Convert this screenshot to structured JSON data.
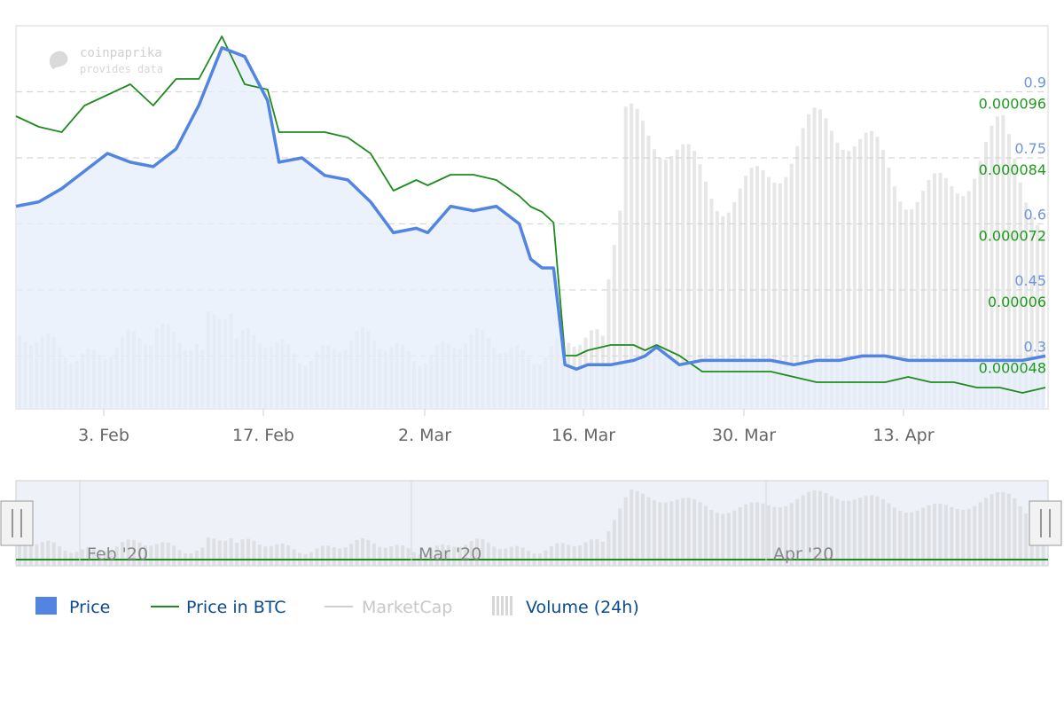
{
  "watermark": {
    "title": "coinpaprika",
    "subtitle": "provides data"
  },
  "colors": {
    "price": "#5285e1",
    "price_fill": "#e6edfb",
    "price_btc": "#1f8b1f",
    "marketcap": "#d7d7d7",
    "volume": "#d3d3d3",
    "grid": "#d6d6d6",
    "left_axis_text": "#6f96d8",
    "right_axis_text": "#1f9a1f",
    "legend_text": "#0b4a8f",
    "legend_hidden": "#c8c8c8",
    "navigator_bg": "#e9ecf6",
    "navigator_line": "#1f8b1f"
  },
  "navigator": {
    "labels": [
      "Feb '20",
      "Mar '20",
      "Apr '20"
    ]
  },
  "legend": [
    {
      "label": "Price",
      "symbol": "square"
    },
    {
      "label": "Price in BTC",
      "symbol": "line"
    },
    {
      "label": "MarketCap",
      "symbol": "line-hidden"
    },
    {
      "label": "Volume (24h)",
      "symbol": "bars"
    }
  ],
  "chart_data": {
    "type": "line",
    "title": "",
    "x_tick_labels": [
      "3. Feb",
      "17. Feb",
      "2. Mar",
      "16. Mar",
      "30. Mar",
      "13. Apr"
    ],
    "left_axis": {
      "series": "Price",
      "ticks": [
        "0.9",
        "0.75",
        "0.6",
        "0.45",
        "0.3"
      ],
      "range": [
        0.18,
        1.05
      ]
    },
    "right_axis": {
      "series": "Price in BTC",
      "ticks": [
        "0.000096",
        "0.000084",
        "0.000072",
        "0.00006",
        "0.000048"
      ],
      "range": [
        3.6e-05,
        0.000108
      ]
    },
    "grid": true,
    "legend_position": "bottom-left",
    "x_start": "2020-01-26",
    "series": [
      {
        "name": "Price",
        "axis": "left",
        "points": [
          [
            "2020-01-26",
            0.64
          ],
          [
            "2020-01-28",
            0.65
          ],
          [
            "2020-01-30",
            0.68
          ],
          [
            "2020-02-01",
            0.72
          ],
          [
            "2020-02-03",
            0.76
          ],
          [
            "2020-02-05",
            0.74
          ],
          [
            "2020-02-07",
            0.73
          ],
          [
            "2020-02-09",
            0.77
          ],
          [
            "2020-02-11",
            0.87
          ],
          [
            "2020-02-13",
            1.0
          ],
          [
            "2020-02-15",
            0.98
          ],
          [
            "2020-02-17",
            0.88
          ],
          [
            "2020-02-18",
            0.74
          ],
          [
            "2020-02-20",
            0.75
          ],
          [
            "2020-02-22",
            0.71
          ],
          [
            "2020-02-24",
            0.7
          ],
          [
            "2020-02-26",
            0.65
          ],
          [
            "2020-02-28",
            0.58
          ],
          [
            "2020-03-01",
            0.59
          ],
          [
            "2020-03-02",
            0.58
          ],
          [
            "2020-03-04",
            0.64
          ],
          [
            "2020-03-06",
            0.63
          ],
          [
            "2020-03-08",
            0.64
          ],
          [
            "2020-03-10",
            0.6
          ],
          [
            "2020-03-11",
            0.52
          ],
          [
            "2020-03-12",
            0.5
          ],
          [
            "2020-03-13",
            0.5
          ],
          [
            "2020-03-14",
            0.28
          ],
          [
            "2020-03-15",
            0.27
          ],
          [
            "2020-03-16",
            0.28
          ],
          [
            "2020-03-18",
            0.28
          ],
          [
            "2020-03-20",
            0.29
          ],
          [
            "2020-03-21",
            0.3
          ],
          [
            "2020-03-22",
            0.32
          ],
          [
            "2020-03-24",
            0.28
          ],
          [
            "2020-03-26",
            0.29
          ],
          [
            "2020-03-28",
            0.29
          ],
          [
            "2020-03-30",
            0.29
          ],
          [
            "2020-04-01",
            0.29
          ],
          [
            "2020-04-03",
            0.28
          ],
          [
            "2020-04-05",
            0.29
          ],
          [
            "2020-04-07",
            0.29
          ],
          [
            "2020-04-09",
            0.3
          ],
          [
            "2020-04-11",
            0.3
          ],
          [
            "2020-04-13",
            0.29
          ],
          [
            "2020-04-15",
            0.29
          ],
          [
            "2020-04-17",
            0.29
          ],
          [
            "2020-04-19",
            0.29
          ],
          [
            "2020-04-21",
            0.29
          ],
          [
            "2020-04-23",
            0.29
          ],
          [
            "2020-04-25",
            0.3
          ]
        ]
      },
      {
        "name": "Price in BTC",
        "axis": "right",
        "points": [
          [
            "2020-01-26",
            9.1e-05
          ],
          [
            "2020-01-28",
            8.9e-05
          ],
          [
            "2020-01-30",
            8.8e-05
          ],
          [
            "2020-02-01",
            9.3e-05
          ],
          [
            "2020-02-03",
            9.5e-05
          ],
          [
            "2020-02-05",
            9.7e-05
          ],
          [
            "2020-02-07",
            9.3e-05
          ],
          [
            "2020-02-09",
            9.8e-05
          ],
          [
            "2020-02-11",
            9.8e-05
          ],
          [
            "2020-02-13",
            0.000106
          ],
          [
            "2020-02-15",
            9.7e-05
          ],
          [
            "2020-02-17",
            9.6e-05
          ],
          [
            "2020-02-18",
            8.8e-05
          ],
          [
            "2020-02-20",
            8.8e-05
          ],
          [
            "2020-02-22",
            8.8e-05
          ],
          [
            "2020-02-24",
            8.7e-05
          ],
          [
            "2020-02-26",
            8.4e-05
          ],
          [
            "2020-02-28",
            7.7e-05
          ],
          [
            "2020-03-01",
            7.9e-05
          ],
          [
            "2020-03-02",
            7.8e-05
          ],
          [
            "2020-03-04",
            8e-05
          ],
          [
            "2020-03-06",
            8e-05
          ],
          [
            "2020-03-08",
            7.9e-05
          ],
          [
            "2020-03-10",
            7.6e-05
          ],
          [
            "2020-03-11",
            7.4e-05
          ],
          [
            "2020-03-12",
            7.3e-05
          ],
          [
            "2020-03-13",
            7.1e-05
          ],
          [
            "2020-03-14",
            4.6e-05
          ],
          [
            "2020-03-15",
            4.6e-05
          ],
          [
            "2020-03-16",
            4.7e-05
          ],
          [
            "2020-03-18",
            4.8e-05
          ],
          [
            "2020-03-20",
            4.8e-05
          ],
          [
            "2020-03-21",
            4.7e-05
          ],
          [
            "2020-03-22",
            4.8e-05
          ],
          [
            "2020-03-24",
            4.6e-05
          ],
          [
            "2020-03-26",
            4.3e-05
          ],
          [
            "2020-03-28",
            4.3e-05
          ],
          [
            "2020-03-30",
            4.3e-05
          ],
          [
            "2020-04-01",
            4.3e-05
          ],
          [
            "2020-04-03",
            4.2e-05
          ],
          [
            "2020-04-05",
            4.1e-05
          ],
          [
            "2020-04-07",
            4.1e-05
          ],
          [
            "2020-04-09",
            4.1e-05
          ],
          [
            "2020-04-11",
            4.1e-05
          ],
          [
            "2020-04-13",
            4.2e-05
          ],
          [
            "2020-04-15",
            4.1e-05
          ],
          [
            "2020-04-17",
            4.1e-05
          ],
          [
            "2020-04-19",
            4e-05
          ],
          [
            "2020-04-21",
            4e-05
          ],
          [
            "2020-04-23",
            3.9e-05
          ],
          [
            "2020-04-25",
            4e-05
          ]
        ]
      }
    ]
  }
}
